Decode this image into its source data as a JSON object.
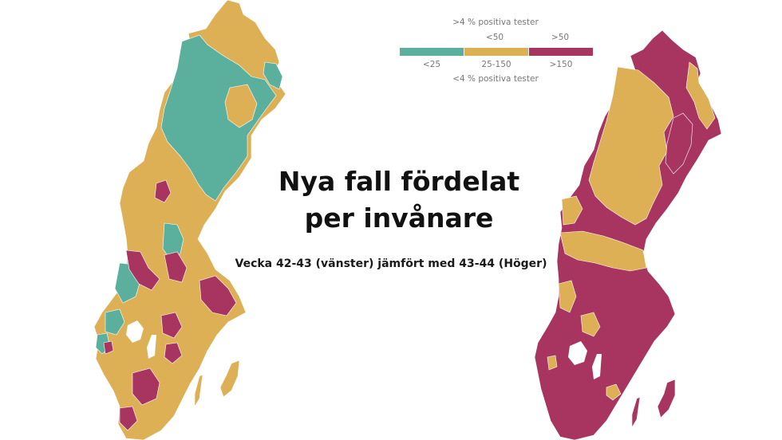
{
  "title_line1": "Nya fall fördelat",
  "title_line2": "per invånare",
  "subtitle": "Vecka 42-43 (vänster) jämfört med 43-44 (Höger)",
  "legend": {
    "top_caption": ">4 % positiva tester",
    "top_labels": [
      "<50",
      ">50"
    ],
    "bottom_labels": [
      "<25",
      "25-150",
      ">150"
    ],
    "bottom_caption": "<4 % positiva tester",
    "colors": [
      "#5bb09d",
      "#deb056",
      "#a8355f"
    ]
  },
  "maps": [
    {
      "name": "left-map-vecka-42-43",
      "dominant_colors": [
        "#deb056",
        "#5bb09d",
        "#a8355f"
      ]
    },
    {
      "name": "right-map-vecka-43-44",
      "dominant_colors": [
        "#a8355f",
        "#deb056"
      ]
    }
  ]
}
